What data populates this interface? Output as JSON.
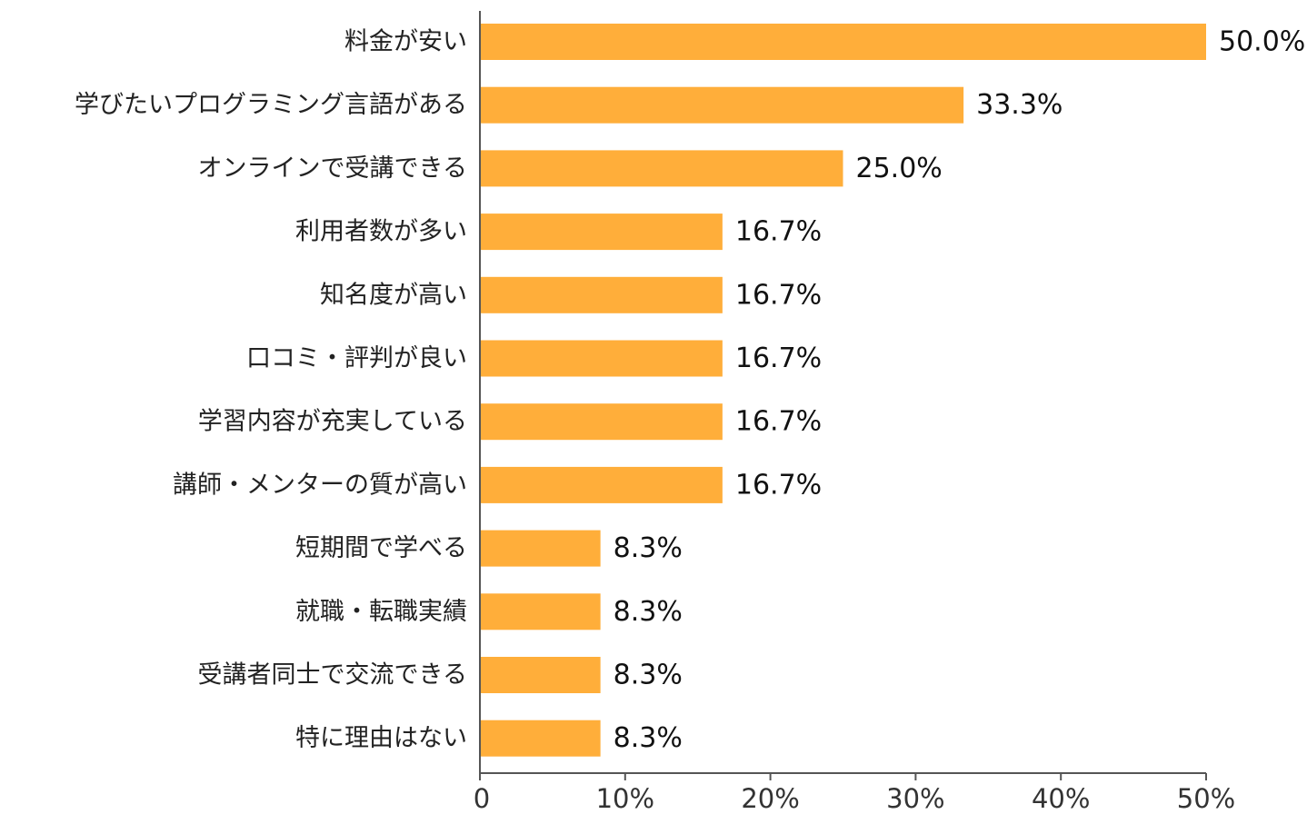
{
  "chart_data": {
    "type": "bar",
    "orientation": "horizontal",
    "categories": [
      "料金が安い",
      "学びたいプログラミング言語がある",
      "オンラインで受講できる",
      "利用者数が多い",
      "知名度が高い",
      "口コミ・評判が良い",
      "学習内容が充実している",
      "講師・メンターの質が高い",
      "短期間で学べる",
      "就職・転職実績",
      "受講者同士で交流できる",
      "特に理由はない"
    ],
    "values": [
      50.0,
      33.3,
      25.0,
      16.7,
      16.7,
      16.7,
      16.7,
      16.7,
      8.3,
      8.3,
      8.3,
      8.3
    ],
    "value_labels": [
      "50.0%",
      "33.3%",
      "25.0%",
      "16.7%",
      "16.7%",
      "16.7%",
      "16.7%",
      "16.7%",
      "8.3%",
      "8.3%",
      "8.3%",
      "8.3%"
    ],
    "x_ticks": [
      0,
      10,
      20,
      30,
      40,
      50
    ],
    "x_tick_labels": [
      "0",
      "10%",
      "20%",
      "30%",
      "40%",
      "50%"
    ],
    "xlim": [
      0,
      50
    ],
    "title": "",
    "xlabel": "",
    "ylabel": "",
    "grid": false,
    "bar_color": "#FFAE3A"
  }
}
